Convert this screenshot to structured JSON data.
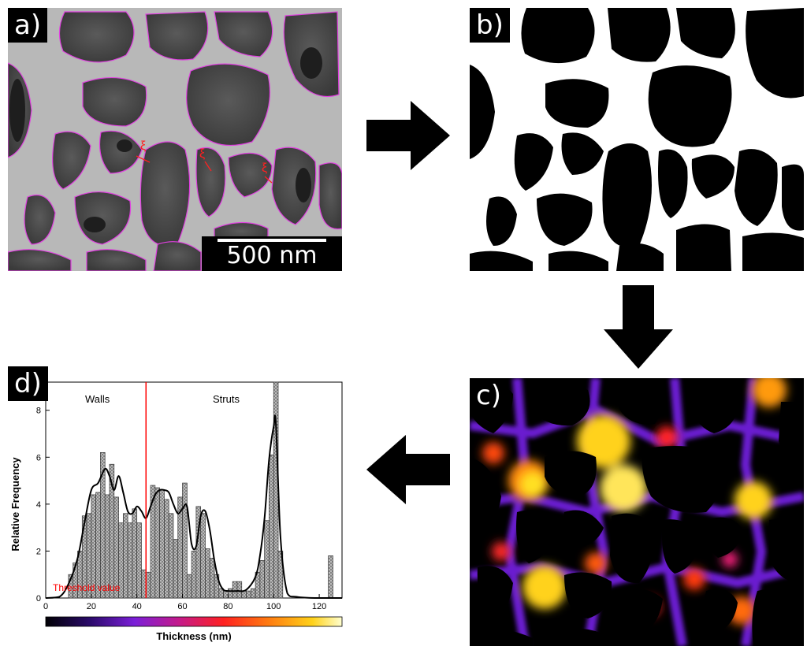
{
  "panels": {
    "a": {
      "label": "a)",
      "scale_bar": "500 nm",
      "wall_symbol": "ξ"
    },
    "b": {
      "label": "b)"
    },
    "c": {
      "label": "c)"
    },
    "d": {
      "label": "d)"
    }
  },
  "colors": {
    "outline": "#e040e0",
    "threshold_line": "#ff0000",
    "histogram_fill": "#bcbcbc",
    "colorbar": [
      "#000004",
      "#2b0a6b",
      "#7b1fd8",
      "#c41a8a",
      "#ff2020",
      "#ff7a10",
      "#ffd21a",
      "#ffffd0"
    ]
  },
  "chart_data": {
    "type": "bar",
    "xlabel": "Thickness (nm)",
    "ylabel": "Relative Frequency",
    "xlim": [
      0,
      130
    ],
    "ylim": [
      0,
      9.2
    ],
    "xticks": [
      "0",
      "20",
      "40",
      "60",
      "80",
      "100",
      "120"
    ],
    "yticks": [
      "0",
      "2",
      "4",
      "6",
      "8"
    ],
    "bin_width": 2,
    "bin_starts": [
      10,
      12,
      14,
      16,
      18,
      20,
      22,
      24,
      26,
      28,
      30,
      32,
      34,
      36,
      38,
      40,
      42,
      44,
      46,
      48,
      50,
      52,
      54,
      56,
      58,
      60,
      62,
      64,
      66,
      68,
      70,
      72,
      74,
      76,
      78,
      80,
      82,
      84,
      86,
      88,
      90,
      92,
      94,
      96,
      98,
      100,
      102,
      124
    ],
    "values": [
      1.0,
      1.5,
      2.0,
      3.5,
      3.6,
      4.4,
      4.5,
      6.2,
      4.4,
      5.7,
      4.3,
      3.2,
      3.6,
      3.2,
      3.8,
      3.2,
      1.2,
      1.1,
      4.8,
      4.7,
      4.6,
      4.2,
      3.6,
      2.5,
      4.3,
      4.9,
      1.0,
      2.0,
      3.9,
      3.6,
      2.1,
      1.7,
      1.0,
      0.4,
      0.3,
      0.4,
      0.7,
      0.7,
      0.3,
      0.3,
      0.4,
      1.1,
      1.6,
      3.3,
      6.1,
      9.2,
      2.0,
      1.8
    ],
    "curve_x": [
      0,
      6,
      10,
      14,
      17,
      20,
      23,
      26,
      28,
      30,
      32,
      34,
      36,
      38,
      40,
      42,
      44,
      46,
      48,
      50,
      52,
      54,
      56,
      58,
      60,
      62,
      64,
      66,
      68,
      70,
      72,
      74,
      76,
      78,
      80,
      84,
      88,
      92,
      94,
      96,
      98,
      100,
      101,
      103,
      106,
      110,
      118,
      130
    ],
    "curve_y": [
      0,
      0.05,
      0.6,
      1.7,
      3.2,
      4.6,
      4.9,
      5.5,
      5.2,
      4.6,
      5.2,
      4.5,
      3.7,
      3.6,
      3.9,
      3.7,
      3.4,
      3.9,
      4.4,
      4.6,
      4.6,
      4.5,
      4.0,
      3.6,
      3.8,
      3.9,
      2.3,
      2.2,
      3.5,
      3.7,
      2.9,
      1.6,
      0.7,
      0.35,
      0.3,
      0.3,
      0.35,
      0.9,
      1.8,
      3.4,
      5.9,
      7.3,
      7.4,
      2.6,
      0.2,
      0.05,
      0.0,
      0.0
    ],
    "threshold": 44,
    "annotations": {
      "walls": "Walls",
      "struts": "Struts",
      "threshold": "Threshold value"
    }
  }
}
